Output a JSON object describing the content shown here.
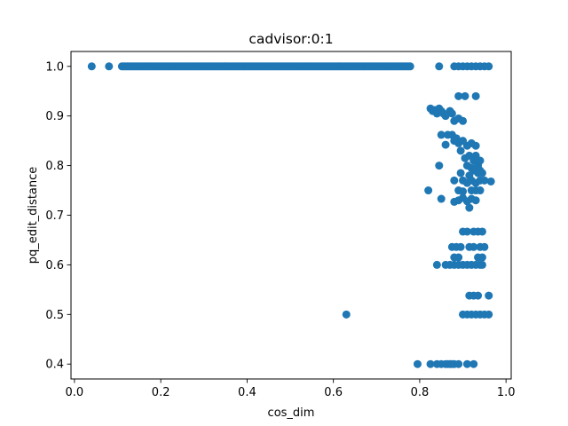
{
  "chart_data": {
    "type": "scatter",
    "title": "cadvisor:0:1",
    "xlabel": "cos_dim",
    "ylabel": "pq_edit_distance",
    "xlim": [
      -0.008,
      1.012
    ],
    "ylim": [
      0.37,
      1.03
    ],
    "xticks": [
      {
        "value": 0.0,
        "label": "0.0"
      },
      {
        "value": 0.2,
        "label": "0.2"
      },
      {
        "value": 0.4,
        "label": "0.4"
      },
      {
        "value": 0.6,
        "label": "0.6"
      },
      {
        "value": 0.8,
        "label": "0.8"
      },
      {
        "value": 1.0,
        "label": "1.0"
      }
    ],
    "yticks": [
      {
        "value": 0.4,
        "label": "0.4"
      },
      {
        "value": 0.5,
        "label": "0.5"
      },
      {
        "value": 0.6,
        "label": "0.6"
      },
      {
        "value": 0.7,
        "label": "0.7"
      },
      {
        "value": 0.8,
        "label": "0.8"
      },
      {
        "value": 0.9,
        "label": "0.9"
      },
      {
        "value": 1.0,
        "label": "1.0"
      }
    ],
    "grid": false,
    "marker_color": "#1f77b4",
    "dense_band": {
      "y": 1.0,
      "x_start": 0.11,
      "x_end": 0.78,
      "step": 0.004
    },
    "points": [
      [
        0.04,
        1.0
      ],
      [
        0.08,
        1.0
      ],
      [
        0.845,
        1.0
      ],
      [
        0.88,
        1.0
      ],
      [
        0.89,
        1.0
      ],
      [
        0.9,
        1.0
      ],
      [
        0.91,
        1.0
      ],
      [
        0.92,
        1.0
      ],
      [
        0.93,
        1.0
      ],
      [
        0.94,
        1.0
      ],
      [
        0.95,
        1.0
      ],
      [
        0.96,
        1.0
      ],
      [
        0.63,
        0.5
      ],
      [
        0.89,
        0.94
      ],
      [
        0.905,
        0.94
      ],
      [
        0.93,
        0.94
      ],
      [
        0.825,
        0.915
      ],
      [
        0.83,
        0.91
      ],
      [
        0.835,
        0.912
      ],
      [
        0.84,
        0.905
      ],
      [
        0.845,
        0.915
      ],
      [
        0.85,
        0.91
      ],
      [
        0.855,
        0.905
      ],
      [
        0.86,
        0.9
      ],
      [
        0.87,
        0.91
      ],
      [
        0.875,
        0.905
      ],
      [
        0.88,
        0.89
      ],
      [
        0.89,
        0.895
      ],
      [
        0.9,
        0.89
      ],
      [
        0.85,
        0.862
      ],
      [
        0.865,
        0.862
      ],
      [
        0.875,
        0.862
      ],
      [
        0.885,
        0.855
      ],
      [
        0.86,
        0.842
      ],
      [
        0.88,
        0.85
      ],
      [
        0.89,
        0.845
      ],
      [
        0.9,
        0.85
      ],
      [
        0.91,
        0.84
      ],
      [
        0.92,
        0.845
      ],
      [
        0.93,
        0.84
      ],
      [
        0.895,
        0.83
      ],
      [
        0.905,
        0.815
      ],
      [
        0.915,
        0.82
      ],
      [
        0.925,
        0.81
      ],
      [
        0.93,
        0.82
      ],
      [
        0.935,
        0.8
      ],
      [
        0.94,
        0.81
      ],
      [
        0.845,
        0.8
      ],
      [
        0.91,
        0.8
      ],
      [
        0.92,
        0.795
      ],
      [
        0.925,
        0.79
      ],
      [
        0.93,
        0.795
      ],
      [
        0.935,
        0.785
      ],
      [
        0.94,
        0.79
      ],
      [
        0.945,
        0.785
      ],
      [
        0.895,
        0.785
      ],
      [
        0.915,
        0.78
      ],
      [
        0.88,
        0.77
      ],
      [
        0.9,
        0.77
      ],
      [
        0.91,
        0.765
      ],
      [
        0.92,
        0.77
      ],
      [
        0.93,
        0.765
      ],
      [
        0.94,
        0.77
      ],
      [
        0.95,
        0.77
      ],
      [
        0.965,
        0.768
      ],
      [
        0.82,
        0.75
      ],
      [
        0.89,
        0.75
      ],
      [
        0.9,
        0.748
      ],
      [
        0.92,
        0.75
      ],
      [
        0.93,
        0.75
      ],
      [
        0.94,
        0.75
      ],
      [
        0.85,
        0.733
      ],
      [
        0.88,
        0.727
      ],
      [
        0.89,
        0.73
      ],
      [
        0.9,
        0.735
      ],
      [
        0.91,
        0.728
      ],
      [
        0.92,
        0.733
      ],
      [
        0.93,
        0.73
      ],
      [
        0.915,
        0.715
      ],
      [
        0.9,
        0.667
      ],
      [
        0.91,
        0.667
      ],
      [
        0.925,
        0.667
      ],
      [
        0.935,
        0.667
      ],
      [
        0.945,
        0.667
      ],
      [
        0.875,
        0.636
      ],
      [
        0.885,
        0.636
      ],
      [
        0.895,
        0.636
      ],
      [
        0.915,
        0.636
      ],
      [
        0.925,
        0.636
      ],
      [
        0.94,
        0.636
      ],
      [
        0.95,
        0.636
      ],
      [
        0.88,
        0.615
      ],
      [
        0.89,
        0.615
      ],
      [
        0.935,
        0.615
      ],
      [
        0.945,
        0.615
      ],
      [
        0.84,
        0.6
      ],
      [
        0.86,
        0.6
      ],
      [
        0.87,
        0.6
      ],
      [
        0.88,
        0.6
      ],
      [
        0.89,
        0.6
      ],
      [
        0.9,
        0.6
      ],
      [
        0.91,
        0.6
      ],
      [
        0.92,
        0.6
      ],
      [
        0.93,
        0.6
      ],
      [
        0.94,
        0.6
      ],
      [
        0.945,
        0.6
      ],
      [
        0.915,
        0.538
      ],
      [
        0.925,
        0.538
      ],
      [
        0.935,
        0.538
      ],
      [
        0.96,
        0.538
      ],
      [
        0.9,
        0.5
      ],
      [
        0.91,
        0.5
      ],
      [
        0.92,
        0.5
      ],
      [
        0.93,
        0.5
      ],
      [
        0.94,
        0.5
      ],
      [
        0.95,
        0.5
      ],
      [
        0.96,
        0.5
      ],
      [
        0.795,
        0.4
      ],
      [
        0.825,
        0.4
      ],
      [
        0.84,
        0.4
      ],
      [
        0.85,
        0.4
      ],
      [
        0.86,
        0.4
      ],
      [
        0.865,
        0.4
      ],
      [
        0.87,
        0.4
      ],
      [
        0.875,
        0.4
      ],
      [
        0.88,
        0.4
      ],
      [
        0.89,
        0.4
      ],
      [
        0.91,
        0.4
      ],
      [
        0.925,
        0.4
      ]
    ]
  }
}
